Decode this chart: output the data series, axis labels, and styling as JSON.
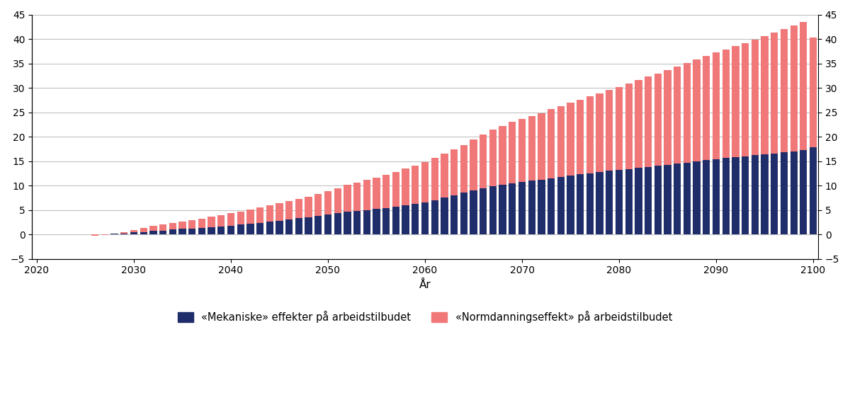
{
  "years": [
    2021,
    2022,
    2023,
    2024,
    2025,
    2026,
    2027,
    2028,
    2029,
    2030,
    2031,
    2032,
    2033,
    2034,
    2035,
    2036,
    2037,
    2038,
    2039,
    2040,
    2041,
    2042,
    2043,
    2044,
    2045,
    2046,
    2047,
    2048,
    2049,
    2050,
    2051,
    2052,
    2053,
    2054,
    2055,
    2056,
    2057,
    2058,
    2059,
    2060,
    2061,
    2062,
    2063,
    2064,
    2065,
    2066,
    2067,
    2068,
    2069,
    2070,
    2071,
    2072,
    2073,
    2074,
    2075,
    2076,
    2077,
    2078,
    2079,
    2080,
    2081,
    2082,
    2083,
    2084,
    2085,
    2086,
    2087,
    2088,
    2089,
    2090,
    2091,
    2092,
    2093,
    2094,
    2095,
    2096,
    2097,
    2098,
    2099,
    2100
  ],
  "mekaniske": [
    0.0,
    0.0,
    0.0,
    0.0,
    0.0,
    0.0,
    0.05,
    0.1,
    0.2,
    0.4,
    0.5,
    0.7,
    0.8,
    1.0,
    1.1,
    1.2,
    1.3,
    1.5,
    1.6,
    1.8,
    2.0,
    2.2,
    2.4,
    2.6,
    2.8,
    3.0,
    3.3,
    3.5,
    3.8,
    4.0,
    4.3,
    4.6,
    4.8,
    5.0,
    5.2,
    5.4,
    5.7,
    6.0,
    6.3,
    6.6,
    7.0,
    7.5,
    8.0,
    8.5,
    9.0,
    9.5,
    9.9,
    10.2,
    10.5,
    10.8,
    11.0,
    11.2,
    11.5,
    11.7,
    12.0,
    12.3,
    12.5,
    12.8,
    13.0,
    13.2,
    13.4,
    13.6,
    13.8,
    14.0,
    14.2,
    14.5,
    14.7,
    15.0,
    15.2,
    15.4,
    15.6,
    15.8,
    16.0,
    16.2,
    16.4,
    16.6,
    16.8,
    17.0,
    17.3,
    17.8
  ],
  "normdanning": [
    0.0,
    0.0,
    0.0,
    0.0,
    0.0,
    -0.3,
    -0.2,
    0.0,
    0.3,
    0.5,
    0.8,
    1.0,
    1.2,
    1.4,
    1.5,
    1.7,
    1.9,
    2.1,
    2.3,
    2.5,
    2.7,
    2.9,
    3.1,
    3.3,
    3.6,
    3.8,
    4.0,
    4.2,
    4.5,
    4.8,
    5.1,
    5.5,
    5.8,
    6.1,
    6.4,
    6.8,
    7.1,
    7.5,
    7.8,
    8.2,
    8.6,
    9.0,
    9.4,
    9.8,
    10.4,
    11.0,
    11.5,
    12.0,
    12.5,
    12.9,
    13.2,
    13.6,
    14.1,
    14.5,
    14.9,
    15.3,
    15.7,
    16.0,
    16.5,
    17.0,
    17.5,
    18.0,
    18.5,
    18.9,
    19.4,
    19.9,
    20.4,
    20.8,
    21.3,
    21.8,
    22.3,
    22.7,
    23.2,
    23.7,
    24.2,
    24.7,
    25.2,
    25.7,
    26.2,
    22.5
  ],
  "color_mekaniske": "#1f2d6b",
  "color_normdanning": "#f07878",
  "xlabel": "År",
  "ylim": [
    -5,
    45
  ],
  "yticks": [
    -5,
    0,
    5,
    10,
    15,
    20,
    25,
    30,
    35,
    40,
    45
  ],
  "xticks": [
    2020,
    2030,
    2040,
    2050,
    2060,
    2070,
    2080,
    2090,
    2100
  ],
  "legend_mekaniske": "«Mekaniske» effekter på arbeidstilbudet",
  "legend_normdanning": "«Normdanningseffekt» på arbeidstilbudet",
  "background_color": "#ffffff",
  "grid_color": "#b0b0b0"
}
